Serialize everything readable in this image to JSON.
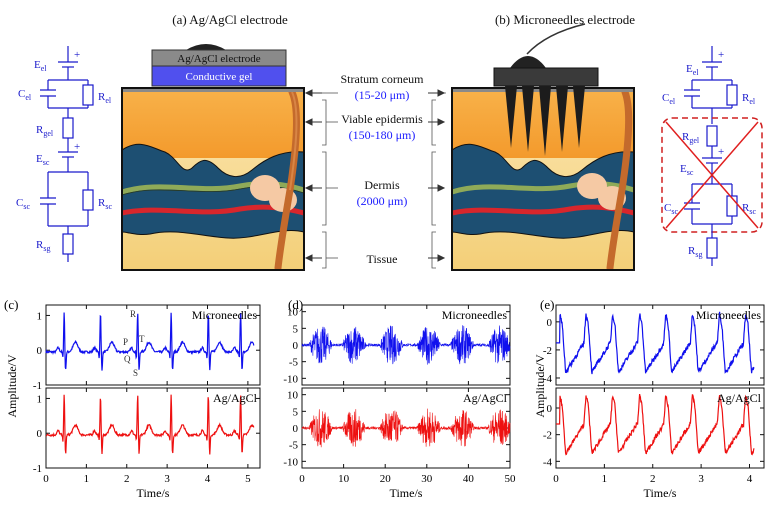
{
  "top_clip_text": "g",
  "panel_a": {
    "title": "(a) Ag/AgCl electrode",
    "electrode_label": "Ag/AgCl electrode",
    "gel_label": "Conductive gel"
  },
  "panel_b": {
    "title": "(b) Microneedles electrode"
  },
  "layers": {
    "stratum": "Stratum corneum",
    "stratum_dim": "(15-20 μm)",
    "epidermis": "Viable epidermis",
    "epidermis_dim": "(150-180 μm)",
    "dermis": "Dermis",
    "dermis_dim": "(2000 μm)",
    "tissue": "Tissue"
  },
  "circuit_left": {
    "E_el": "E",
    "E_el_sub": "el",
    "C_el": "C",
    "C_el_sub": "el",
    "R_el": "R",
    "R_el_sub": "el",
    "R_gel": "R",
    "R_gel_sub": "gel",
    "E_sc": "E",
    "E_sc_sub": "sc",
    "C_sc": "C",
    "C_sc_sub": "sc",
    "R_sc": "R",
    "R_sc_sub": "sc",
    "R_sg": "R",
    "R_sg_sub": "sg"
  },
  "circuit_right": {
    "E_el": "E",
    "E_el_sub": "el",
    "C_el": "C",
    "C_el_sub": "el",
    "R_el": "R",
    "R_el_sub": "el",
    "R_gel": "R",
    "R_gel_sub": "gel",
    "E_sc": "E",
    "E_sc_sub": "sc",
    "C_sc": "C",
    "C_sc_sub": "sc",
    "R_sc": "R",
    "R_sc_sub": "sc",
    "R_sg": "R",
    "R_sg_sub": "sg"
  },
  "colors": {
    "circuit": "#1a1acc",
    "cross": "#e02020",
    "epidermis": "#f6a43a",
    "dermis": "#1d4f72",
    "tissue": "#f5d488",
    "hair": "#c0662a",
    "trace_blue": "#1010ee",
    "trace_red": "#ee1010",
    "gel": "#5050ee",
    "electrode_gray": "#8a8a8a"
  },
  "chart_data": [
    {
      "panel": "(c)",
      "type": "line",
      "xlabel": "Time/s",
      "ylabel": "Amplitude/V",
      "xlim": [
        0,
        5.3
      ],
      "xticks": [
        0,
        1,
        2,
        3,
        4,
        5
      ],
      "top": {
        "name": "Microneedles",
        "ylim": [
          -1,
          1.3
        ],
        "yticks": [
          -1,
          0,
          1
        ],
        "peaks": [
          0.45,
          1.35,
          2.27,
          3.1,
          4.02,
          4.82
        ]
      },
      "bottom": {
        "name": "Ag/AgCl",
        "ylim": [
          -1,
          1.3
        ],
        "yticks": [
          -1,
          0,
          1
        ],
        "peaks": [
          0.45,
          1.35,
          2.27,
          3.1,
          4.02,
          4.82
        ]
      },
      "annotations": [
        "R",
        "T",
        "P",
        "Q",
        "S"
      ]
    },
    {
      "panel": "(d)",
      "type": "line",
      "xlabel": "Time/s",
      "ylabel": "",
      "xlim": [
        0,
        50
      ],
      "xticks": [
        0,
        10,
        20,
        30,
        40,
        50
      ],
      "top": {
        "name": "Microneedles",
        "ylim": [
          -12,
          12
        ],
        "yticks": [
          -10,
          -5,
          0,
          5,
          10
        ],
        "bursts": [
          2,
          10,
          19,
          28,
          36,
          45
        ]
      },
      "bottom": {
        "name": "Ag/AgCl",
        "ylim": [
          -12,
          12
        ],
        "yticks": [
          -10,
          -5,
          0,
          5,
          10
        ],
        "bursts": [
          2,
          10,
          19,
          28,
          36,
          45
        ]
      }
    },
    {
      "panel": "(e)",
      "type": "line",
      "xlabel": "Time/s",
      "ylabel": "Amplitude/V",
      "xlim": [
        0,
        4.3
      ],
      "xticks": [
        0,
        1,
        2,
        3,
        4
      ],
      "top": {
        "name": "Microneedles",
        "ylim": [
          -4.5,
          1.2
        ],
        "yticks": [
          -4,
          -2,
          0
        ],
        "peaks": [
          0.08,
          0.62,
          1.17,
          1.73,
          2.27,
          2.82,
          3.38,
          3.92
        ]
      },
      "bottom": {
        "name": "Ag/AgCl",
        "ylim": [
          -4.5,
          1.5
        ],
        "yticks": [
          -4,
          -2,
          0
        ],
        "peaks": [
          0.08,
          0.62,
          1.17,
          1.73,
          2.27,
          2.82,
          3.38,
          3.92
        ]
      }
    }
  ]
}
